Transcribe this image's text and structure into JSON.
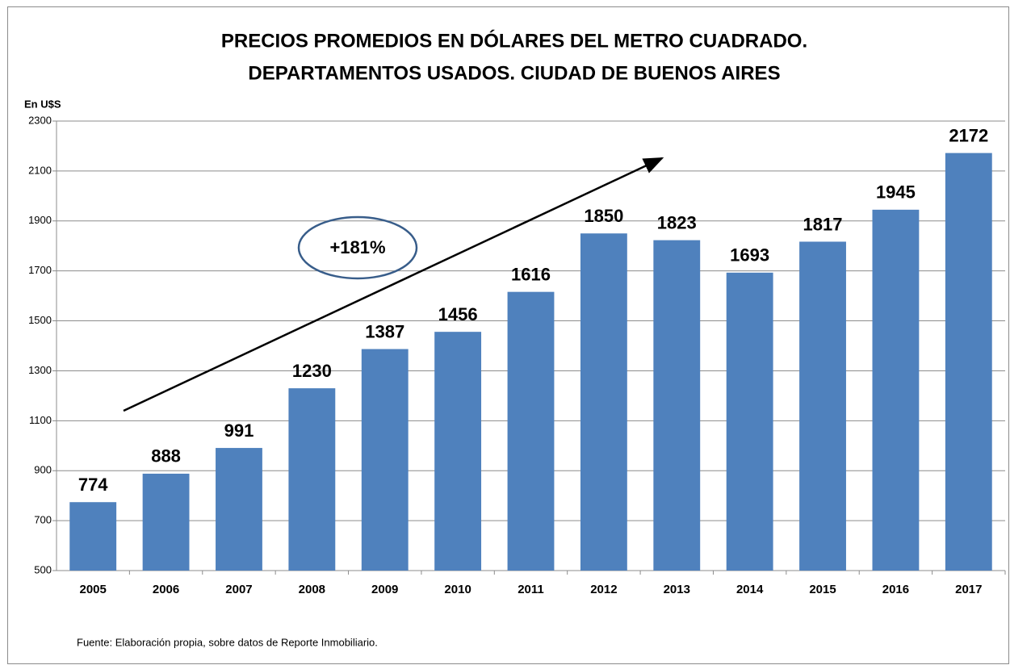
{
  "chart_data": {
    "type": "bar",
    "title": [
      "PRECIOS PROMEDIOS EN DÓLARES DEL METRO CUADRADO.",
      "DEPARTAMENTOS USADOS. CIUDAD DE BUENOS AIRES"
    ],
    "ylabel": "En U$S",
    "annotations": [
      "+181%"
    ],
    "source": "Fuente: Elaboración propia, sobre datos de Reporte Inmobiliario.",
    "categories": [
      "2005",
      "2006",
      "2007",
      "2008",
      "2009",
      "2010",
      "2011",
      "2012",
      "2013",
      "2014",
      "2015",
      "2016",
      "2017"
    ],
    "values": [
      774,
      888,
      991,
      1230,
      1387,
      1456,
      1616,
      1850,
      1823,
      1693,
      1817,
      1945,
      2172
    ],
    "color": "#4f81bd",
    "ylim": [
      500,
      2300
    ],
    "yticks": [
      500,
      700,
      900,
      1100,
      1300,
      1500,
      1700,
      1900,
      2100,
      2300
    ],
    "grid": true
  }
}
